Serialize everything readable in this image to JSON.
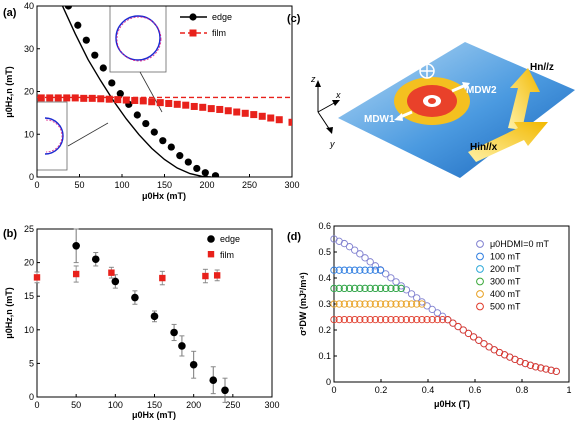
{
  "panels": {
    "a": "(a)",
    "b": "(b)",
    "c": "(c)",
    "d": "(d)"
  },
  "colors": {
    "edge": "#000000",
    "film": "#e8211b",
    "blue": "#1f6ec8",
    "arrow": "#f2c21a"
  },
  "chart_data": [
    {
      "panel": "a",
      "type": "scatter",
      "xlabel": "μ0Hx (mT)",
      "ylabel": "μ0Hz,n (mT)",
      "xlim": [
        0,
        300
      ],
      "ylim": [
        0,
        40
      ],
      "xticks": [
        0,
        50,
        100,
        150,
        200,
        250,
        300
      ],
      "yticks": [
        0,
        10,
        20,
        30,
        40
      ],
      "legend": "top-right",
      "series": [
        {
          "name": "edge",
          "kind": "line",
          "x": [
            30,
            45,
            60,
            75,
            90,
            105,
            120,
            135,
            150,
            165,
            180,
            195,
            205
          ],
          "y": [
            40,
            33.5,
            27.5,
            22.5,
            17.8,
            13.6,
            9.9,
            6.7,
            4.1,
            2.1,
            0.8,
            0.1,
            0
          ]
        },
        {
          "name": "edge",
          "kind": "marker",
          "x": [
            37,
            48,
            58,
            68,
            78,
            88,
            98,
            108,
            118,
            128,
            138,
            148,
            158,
            168,
            178,
            188,
            198,
            210
          ],
          "y": [
            40,
            35.5,
            32,
            28.5,
            25.5,
            22,
            19.5,
            17,
            14.5,
            12.5,
            10.5,
            8.5,
            7,
            5,
            3.5,
            2,
            1,
            0.3
          ]
        },
        {
          "name": "film",
          "kind": "line",
          "x": [
            0,
            300
          ],
          "y": [
            18.6,
            18.6
          ]
        },
        {
          "name": "film",
          "kind": "marker",
          "x": [
            5,
            15,
            25,
            35,
            45,
            55,
            65,
            75,
            85,
            95,
            105,
            115,
            125,
            135,
            145,
            155,
            165,
            175,
            185,
            195,
            205,
            215,
            225,
            235,
            245,
            255,
            265,
            275,
            285,
            300
          ],
          "y": [
            18.5,
            18.5,
            18.5,
            18.5,
            18.5,
            18.4,
            18.4,
            18.3,
            18.2,
            18.1,
            18.0,
            17.9,
            17.8,
            17.6,
            17.4,
            17.2,
            17.0,
            16.8,
            16.5,
            16.3,
            16.0,
            15.8,
            15.5,
            15.2,
            14.9,
            14.6,
            14.2,
            13.8,
            13.4,
            12.8
          ]
        }
      ]
    },
    {
      "panel": "b",
      "type": "scatter",
      "xlabel": "μ0Hx (mT)",
      "ylabel": "μ0Hz,n (mT)",
      "xlim": [
        0,
        300
      ],
      "ylim": [
        0,
        25
      ],
      "xticks": [
        0,
        50,
        100,
        150,
        200,
        250,
        300
      ],
      "yticks": [
        0,
        5,
        10,
        15,
        20,
        25
      ],
      "legend": "top-right",
      "series": [
        {
          "name": "edge",
          "x": [
            50,
            75,
            100,
            125,
            150,
            175,
            185,
            200,
            225,
            240
          ],
          "y": [
            22.5,
            20.5,
            17.2,
            14.8,
            12.0,
            9.6,
            7.6,
            4.8,
            2.5,
            1.0
          ],
          "err": [
            2.5,
            1.0,
            1.0,
            1.0,
            0.8,
            1.2,
            1.5,
            2.0,
            2.0,
            1.8
          ]
        },
        {
          "name": "film",
          "x": [
            0,
            50,
            95,
            160,
            215,
            230
          ],
          "y": [
            17.8,
            18.3,
            18.5,
            17.7,
            18.0,
            18.1
          ],
          "err": [
            0.8,
            1.2,
            0.8,
            1.0,
            1.0,
            0.8
          ]
        }
      ]
    },
    {
      "panel": "d",
      "type": "scatter",
      "xlabel": "μ0Hx (T)",
      "ylabel": "σ²DW (mJ²/m⁴)",
      "xlim": [
        0,
        1.0
      ],
      "ylim": [
        0,
        0.6
      ],
      "xticks": [
        0,
        0.2,
        0.4,
        0.6,
        0.8,
        1.0
      ],
      "yticks": [
        0,
        0.1,
        0.2,
        0.3,
        0.4,
        0.5,
        0.6
      ],
      "legend": "top-right",
      "series": [
        {
          "name": "μ0HDMI=0 mT",
          "color": "#8080d0",
          "plateau": 0.55,
          "xs": 0.0
        },
        {
          "name": "100 mT",
          "color": "#2e7de0",
          "plateau": 0.43,
          "xs": 0.12
        },
        {
          "name": "200 mT",
          "color": "#2ca8d8",
          "plateau": 0.36,
          "xs": 0.24
        },
        {
          "name": "300 mT",
          "color": "#3aa83a",
          "plateau": 0.36,
          "xs": 0.36
        },
        {
          "name": "400 mT",
          "color": "#e8a020",
          "plateau": 0.3,
          "xs": 0.48
        },
        {
          "name": "500 mT",
          "color": "#e03a2a",
          "plateau": 0.24,
          "xs": 0.6
        }
      ],
      "envelope": {
        "x": [
          0,
          0.05,
          0.1,
          0.15,
          0.2,
          0.25,
          0.3,
          0.35,
          0.4,
          0.45,
          0.5,
          0.55,
          0.6,
          0.65,
          0.7,
          0.75,
          0.8,
          0.85,
          0.9,
          0.95
        ],
        "y": [
          0.55,
          0.53,
          0.5,
          0.465,
          0.43,
          0.395,
          0.36,
          0.325,
          0.29,
          0.26,
          0.23,
          0.2,
          0.17,
          0.14,
          0.115,
          0.095,
          0.075,
          0.06,
          0.05,
          0.04
        ]
      }
    }
  ],
  "schematic": {
    "x_axis": "x",
    "y_axis": "y",
    "z_axis": "z",
    "label_dw1": "MDW1",
    "label_dw2": "MDW2",
    "label_hn": "Hn//z",
    "label_hin": "Hin//x"
  }
}
